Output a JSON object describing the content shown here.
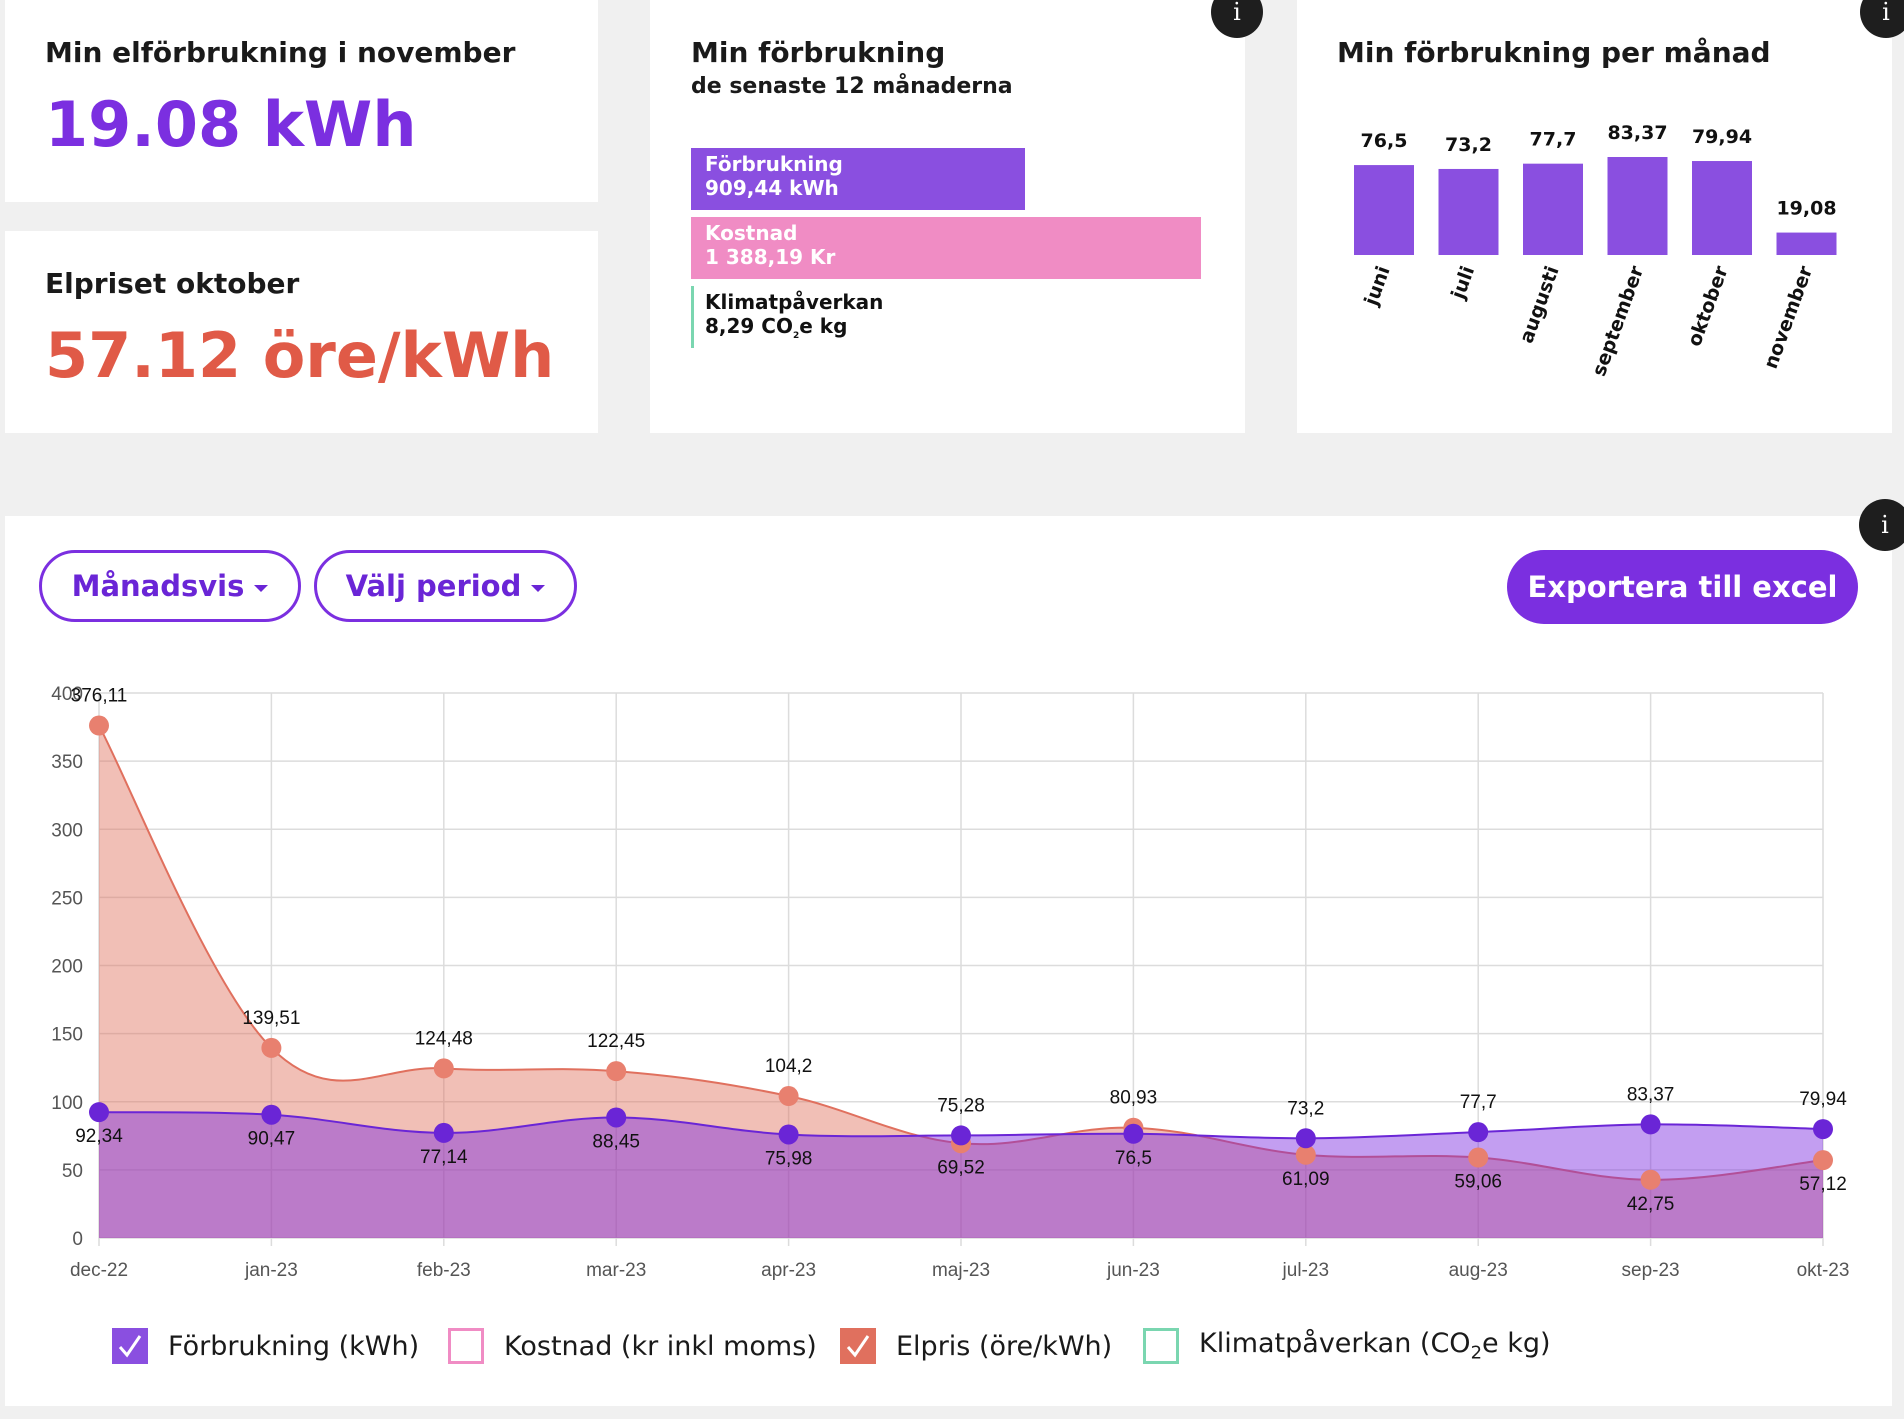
{
  "cards": {
    "consumption_month": {
      "title": "Min elförbrukning i november",
      "value": "19.08 kWh",
      "value_color": "#7b2fe0"
    },
    "price_month": {
      "title": "Elpriset oktober",
      "value": "57.12 öre/kWh",
      "value_color": "#e05a47"
    },
    "summary": {
      "title": "Min förbrukning",
      "subtitle": "de senaste 12 månaderna",
      "info_label": "i",
      "bars": [
        {
          "label": "Förbrukning",
          "value": "909,44 kWh",
          "color": "#8a4fe0",
          "fraction": 0.655
        },
        {
          "label": "Kostnad",
          "value": "1 388,19 Kr",
          "color": "#f08cc4",
          "fraction": 1.0
        }
      ],
      "climate": {
        "label": "Klimatpåverkan",
        "value": "8,29 CO",
        "sub": "2",
        "suffix": "e kg",
        "color": "#7ad6b0"
      }
    },
    "monthly": {
      "title": "Min förbrukning per månad",
      "info_label": "i",
      "bar_color": "#8a4fe0",
      "chart_data": {
        "type": "bar",
        "categories": [
          "juni",
          "juli",
          "augusti",
          "september",
          "oktober",
          "november"
        ],
        "values": [
          76.5,
          73.2,
          77.7,
          83.37,
          79.94,
          19.08
        ],
        "value_labels": [
          "76,5",
          "73,2",
          "77,7",
          "83,37",
          "79,94",
          "19,08"
        ],
        "ylim": [
          0,
          83.37
        ]
      }
    }
  },
  "main": {
    "info_label": "i",
    "dropdowns": [
      {
        "label": "Månadsvis"
      },
      {
        "label": "Välj period"
      }
    ],
    "export_label": "Exportera till excel",
    "legend": [
      {
        "label": "Förbrukning (kWh)",
        "checked": true,
        "color": "#8a4fe0"
      },
      {
        "label": "Kostnad (kr inkl moms)",
        "checked": false,
        "color": "#f08cc4"
      },
      {
        "label": "Elpris (öre/kWh)",
        "checked": true,
        "color": "#e0705e"
      },
      {
        "label_pre": "Klimatpåverkan (CO",
        "label_sub": "2",
        "label_post": "e kg)",
        "checked": false,
        "color": "#7ad6b0"
      }
    ],
    "chart_data": {
      "type": "area",
      "categories": [
        "dec-22",
        "jan-23",
        "feb-23",
        "mar-23",
        "apr-23",
        "maj-23",
        "jun-23",
        "jul-23",
        "aug-23",
        "sep-23",
        "okt-23"
      ],
      "ylim": [
        0,
        400
      ],
      "yticks": [
        0,
        50,
        100,
        150,
        200,
        250,
        300,
        350,
        400
      ],
      "grid": true,
      "series": [
        {
          "name": "Elpris (öre/kWh)",
          "color": "#e0705e",
          "values": [
            376.11,
            139.51,
            124.48,
            122.45,
            104.2,
            69.52,
            80.93,
            61.09,
            59.06,
            42.75,
            57.12
          ],
          "labels": [
            "376,11",
            "139,51",
            "124,48",
            "122,45",
            "104,2",
            "69,52",
            "80,93",
            "61,09",
            "59,06",
            "42,75",
            "57,12"
          ]
        },
        {
          "name": "Förbrukning (kWh)",
          "color": "#6a25d6",
          "values": [
            92.34,
            90.47,
            77.14,
            88.45,
            75.98,
            75.28,
            76.5,
            73.2,
            77.7,
            83.37,
            79.94
          ],
          "labels": [
            "92,34",
            "90,47",
            "77,14",
            "88,45",
            "75,98",
            "75,28",
            "76,5",
            "73,2",
            "77,7",
            "83,37",
            "79,94"
          ]
        }
      ]
    }
  }
}
